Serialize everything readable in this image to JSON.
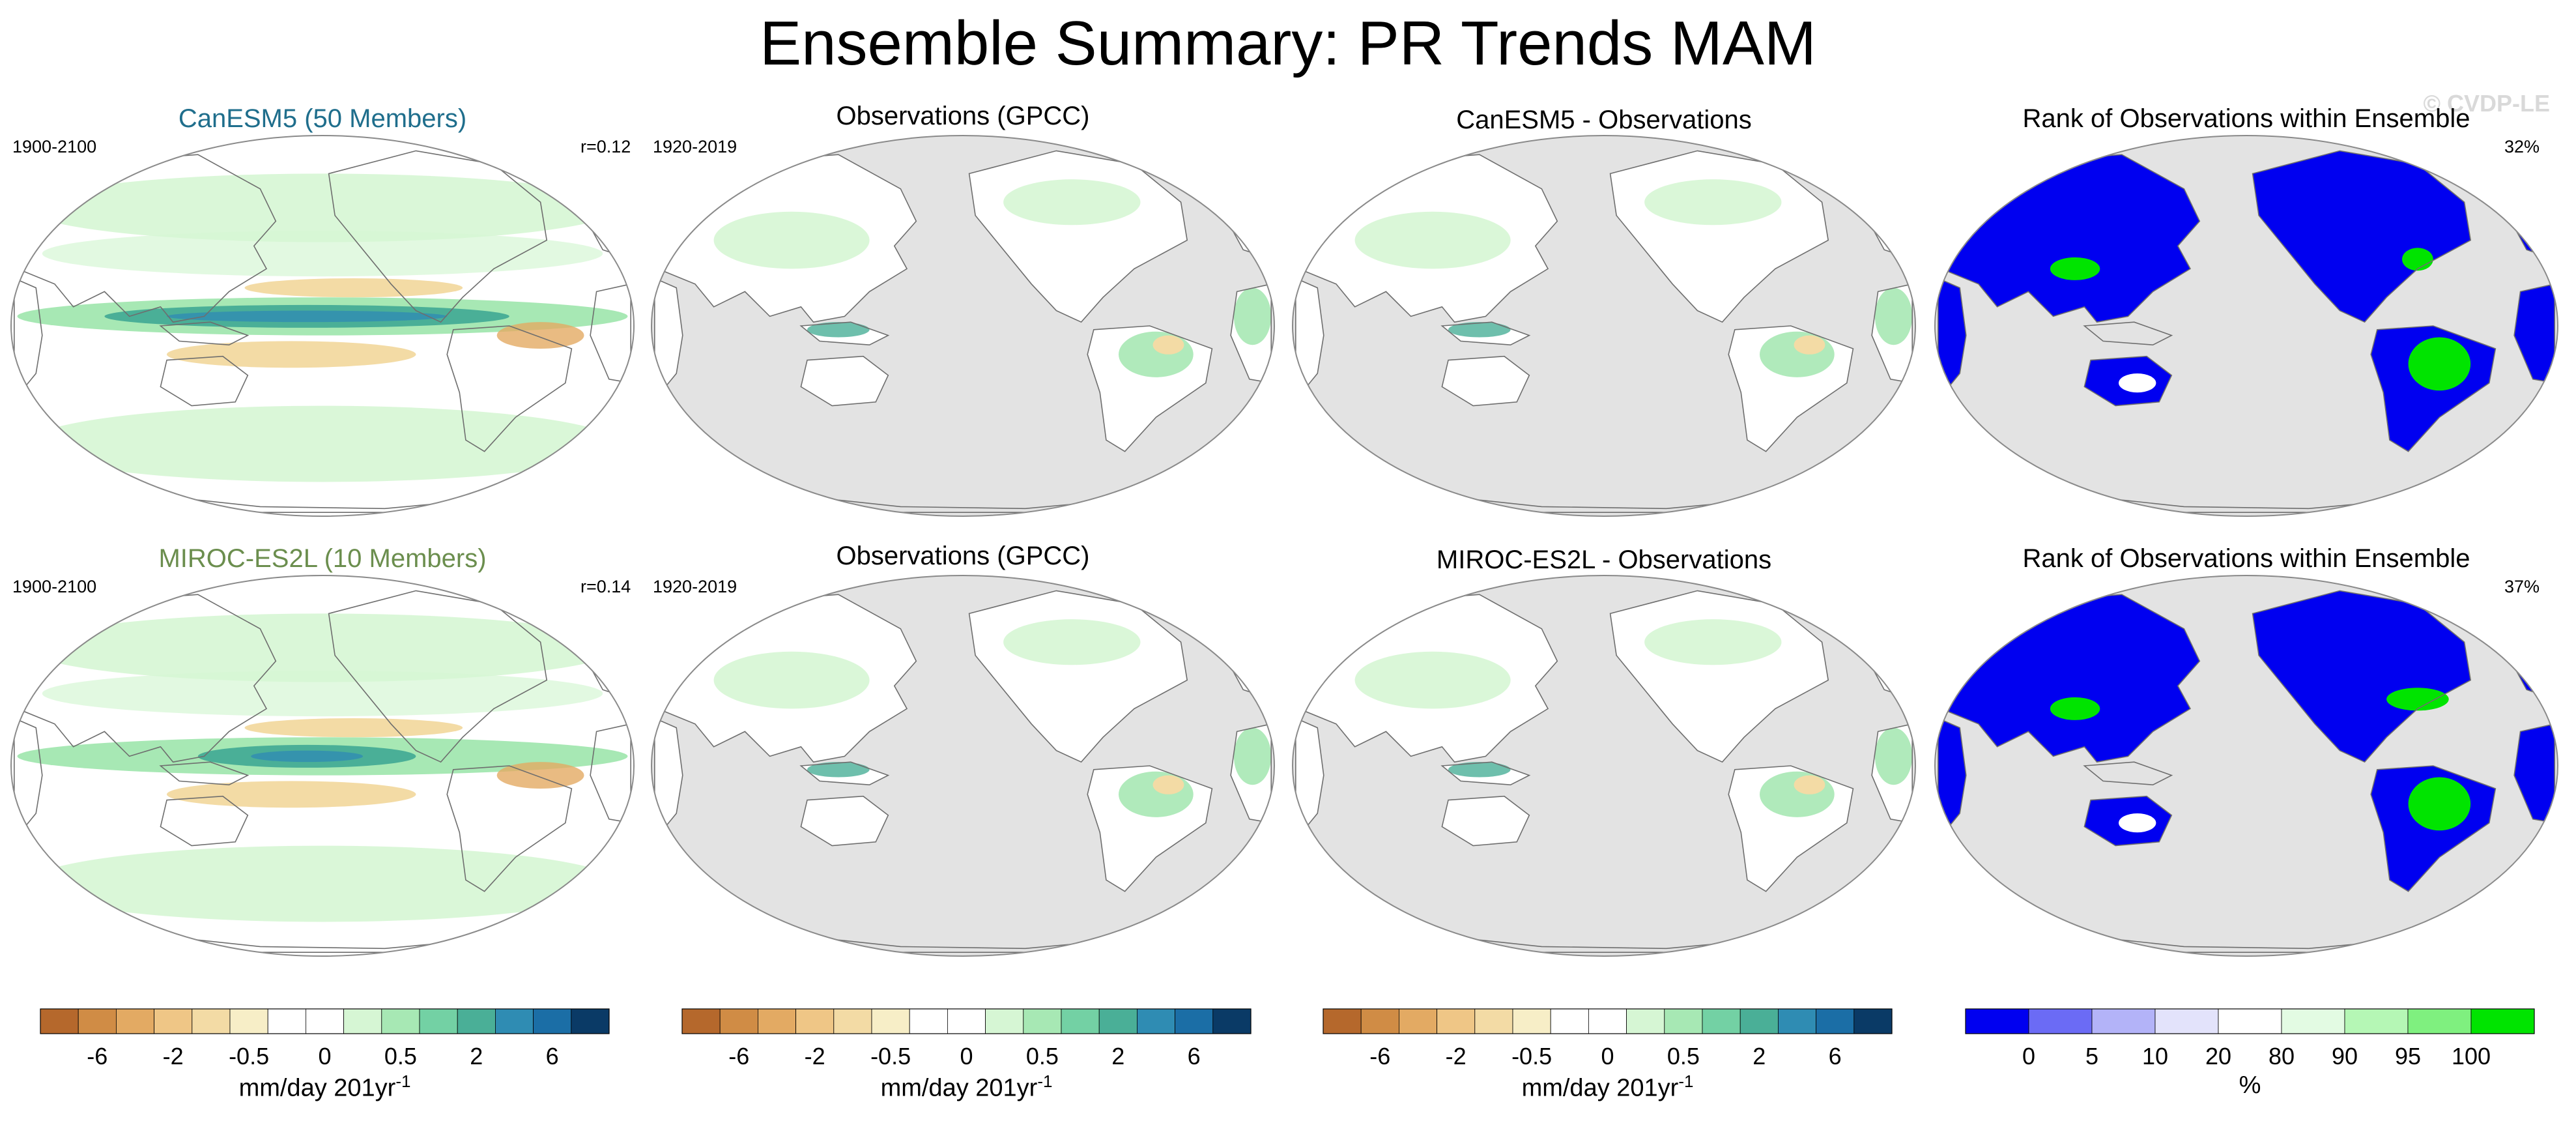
{
  "title": "Ensemble Summary: PR Trends MAM",
  "watermark": "© CVDP-LE",
  "rows": [
    {
      "panels": [
        {
          "title": "CanESM5 (50 Members)",
          "title_color": "#1f6e8c",
          "left": "1900-2100",
          "right": "r=0.12",
          "kind": "model"
        },
        {
          "title": "Observations (GPCC)",
          "title_color": "#000000",
          "left": "1920-2019",
          "right": "",
          "kind": "obs"
        },
        {
          "title": "CanESM5 - Observations",
          "title_color": "#000000",
          "left": "",
          "right": "",
          "kind": "diff"
        },
        {
          "title": "Rank of Observations within Ensemble",
          "title_color": "#000000",
          "left": "",
          "right": "32%",
          "kind": "rank"
        }
      ]
    },
    {
      "panels": [
        {
          "title": "MIROC-ES2L (10 Members)",
          "title_color": "#6b8e4e",
          "left": "1900-2100",
          "right": "r=0.14",
          "kind": "model"
        },
        {
          "title": "Observations (GPCC)",
          "title_color": "#000000",
          "left": "1920-2019",
          "right": "",
          "kind": "obs"
        },
        {
          "title": "MIROC-ES2L - Observations",
          "title_color": "#000000",
          "left": "",
          "right": "",
          "kind": "diff"
        },
        {
          "title": "Rank of Observations within Ensemble",
          "title_color": "#000000",
          "left": "",
          "right": "37%",
          "kind": "rank"
        }
      ]
    }
  ],
  "colorbars": [
    {
      "label": "mm/day 201yr",
      "label_sup": "-1",
      "ticks": [
        "-6",
        "-2",
        "-0.5",
        "0",
        "0.5",
        "2",
        "6"
      ],
      "colors": [
        "#b5682c",
        "#d08c45",
        "#e3aa63",
        "#efc686",
        "#f3dba5",
        "#f7eec7",
        "#ffffff",
        "#ffffff",
        "#d6f6d4",
        "#a7e8b4",
        "#73d1a4",
        "#4aaf97",
        "#2f8cb3",
        "#1b6ea6",
        "#0a3a66"
      ]
    },
    {
      "label": "mm/day 201yr",
      "label_sup": "-1",
      "ticks": [
        "-6",
        "-2",
        "-0.5",
        "0",
        "0.5",
        "2",
        "6"
      ],
      "colors": [
        "#b5682c",
        "#d08c45",
        "#e3aa63",
        "#efc686",
        "#f3dba5",
        "#f7eec7",
        "#ffffff",
        "#ffffff",
        "#d6f6d4",
        "#a7e8b4",
        "#73d1a4",
        "#4aaf97",
        "#2f8cb3",
        "#1b6ea6",
        "#0a3a66"
      ]
    },
    {
      "label": "mm/day 201yr",
      "label_sup": "-1",
      "ticks": [
        "-6",
        "-2",
        "-0.5",
        "0",
        "0.5",
        "2",
        "6"
      ],
      "colors": [
        "#b5682c",
        "#d08c45",
        "#e3aa63",
        "#efc686",
        "#f3dba5",
        "#f7eec7",
        "#ffffff",
        "#ffffff",
        "#d6f6d4",
        "#a7e8b4",
        "#73d1a4",
        "#4aaf97",
        "#2f8cb3",
        "#1b6ea6",
        "#0a3a66"
      ]
    },
    {
      "label": "%",
      "label_sup": "",
      "ticks": [
        "0",
        "5",
        "10",
        "20",
        "80",
        "90",
        "95",
        "100"
      ],
      "colors": [
        "#0000f0",
        "#6b6bf5",
        "#b3b3f8",
        "#e3e3fb",
        "#ffffff",
        "#e3fbe3",
        "#b5f7b5",
        "#7ff07f",
        "#00e400"
      ]
    }
  ],
  "palette": {
    "land_gray": "#e3e3e3",
    "coast": "#6e6e6e",
    "green_light": "#d6f6d4",
    "green_mid": "#a7e8b4",
    "teal": "#4aaf97",
    "blue_dark": "#2f8cb3",
    "tan": "#f3dba5",
    "brown": "#e3aa63",
    "rank_blue": "#0000f0",
    "rank_green": "#00e400"
  }
}
